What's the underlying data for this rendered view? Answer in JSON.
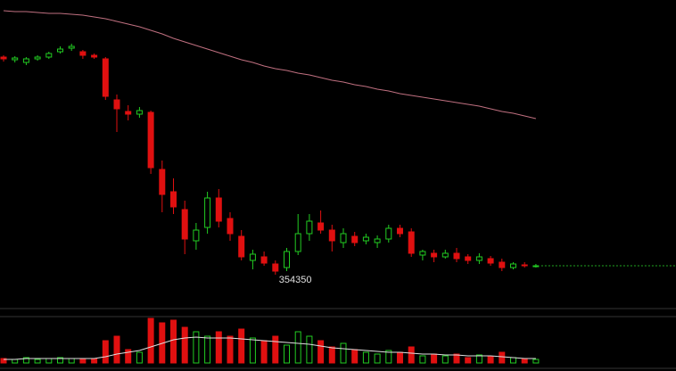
{
  "chart_data": {
    "type": "candlestick",
    "open": [
      378750,
      378450,
      378150,
      378550,
      378750,
      379350,
      379750,
      379350,
      378950,
      378550,
      373950,
      372650,
      372350,
      372550,
      366150,
      363650,
      361650,
      358150,
      359650,
      362950,
      360650,
      358650,
      355950,
      356350,
      355550,
      355150,
      356950,
      358950,
      360150,
      359350,
      357950,
      358650,
      358150,
      357950,
      358350,
      359550,
      359150,
      356550,
      356750,
      356350,
      356750,
      356350,
      355950,
      356150,
      355750,
      355150,
      355450,
      355350
    ],
    "high": [
      378950,
      378850,
      378750,
      378950,
      379350,
      379950,
      380250,
      379550,
      379150,
      378750,
      374550,
      373350,
      373150,
      372750,
      367150,
      365150,
      362650,
      360150,
      363650,
      363950,
      361350,
      359350,
      357150,
      356950,
      355950,
      357350,
      361150,
      361150,
      361550,
      359950,
      359550,
      359150,
      358950,
      358750,
      359950,
      359950,
      359550,
      357150,
      357150,
      357150,
      357350,
      356650,
      356750,
      356450,
      356150,
      355750,
      355750,
      355550
    ],
    "low": [
      378250,
      378150,
      377850,
      378350,
      378550,
      379150,
      379450,
      378550,
      378550,
      373950,
      370350,
      371650,
      371950,
      365650,
      361350,
      361150,
      356650,
      357150,
      358950,
      359650,
      358150,
      355950,
      354950,
      355350,
      354350,
      354750,
      356550,
      358150,
      358950,
      356950,
      357350,
      357550,
      357750,
      357350,
      357950,
      358550,
      356350,
      355950,
      355750,
      356150,
      355750,
      355550,
      355550,
      355350,
      354750,
      354950,
      355150,
      355150
    ],
    "close": [
      378550,
      378650,
      378550,
      378750,
      379150,
      379650,
      379950,
      378950,
      378750,
      374350,
      372950,
      372350,
      372750,
      366350,
      363350,
      361950,
      358350,
      359350,
      362950,
      360350,
      358950,
      356350,
      356650,
      355650,
      354750,
      356950,
      358950,
      360350,
      359350,
      358150,
      358950,
      357950,
      358550,
      358350,
      359550,
      358950,
      356750,
      356950,
      356350,
      356750,
      356150,
      355950,
      356350,
      355650,
      355150,
      355550,
      355350,
      355350
    ],
    "ma": [
      383950,
      383850,
      383850,
      383750,
      383650,
      383650,
      383550,
      383450,
      383250,
      383050,
      382750,
      382450,
      382150,
      381750,
      381350,
      380850,
      380450,
      380050,
      379650,
      379250,
      378850,
      378450,
      378150,
      377750,
      377450,
      377250,
      376950,
      376750,
      376450,
      376150,
      375950,
      375650,
      375450,
      375150,
      374950,
      374650,
      374450,
      374250,
      374050,
      373850,
      373650,
      373450,
      373250,
      372950,
      372650,
      372450,
      372150,
      371850
    ],
    "volume": [
      5,
      4,
      6,
      4,
      5,
      6,
      5,
      4,
      5,
      25,
      30,
      15,
      12,
      50,
      45,
      48,
      40,
      35,
      30,
      35,
      30,
      38,
      28,
      25,
      30,
      20,
      35,
      30,
      25,
      18,
      22,
      15,
      12,
      10,
      14,
      12,
      18,
      8,
      10,
      8,
      10,
      6,
      9,
      7,
      12,
      6,
      5,
      4
    ],
    "volume_ma": [
      4,
      4,
      5,
      5,
      5,
      5,
      5,
      5,
      5,
      7,
      10,
      12,
      14,
      18,
      22,
      26,
      28,
      29,
      28,
      28,
      28,
      27,
      26,
      25,
      24,
      23,
      22,
      21,
      19,
      17,
      16,
      15,
      14,
      13,
      12,
      12,
      11,
      10,
      10,
      9,
      9,
      8,
      8,
      8,
      7,
      6,
      5,
      5
    ],
    "ylim": [
      350650,
      385150
    ],
    "vlim": [
      0,
      50
    ],
    "low_label_index": 24,
    "up_color": "#22cc22",
    "down_color": "#e01010",
    "ma_color": "#c07080",
    "vol_ma_color": "#e0e0e0",
    "last_line_color": "#22aa22"
  }
}
